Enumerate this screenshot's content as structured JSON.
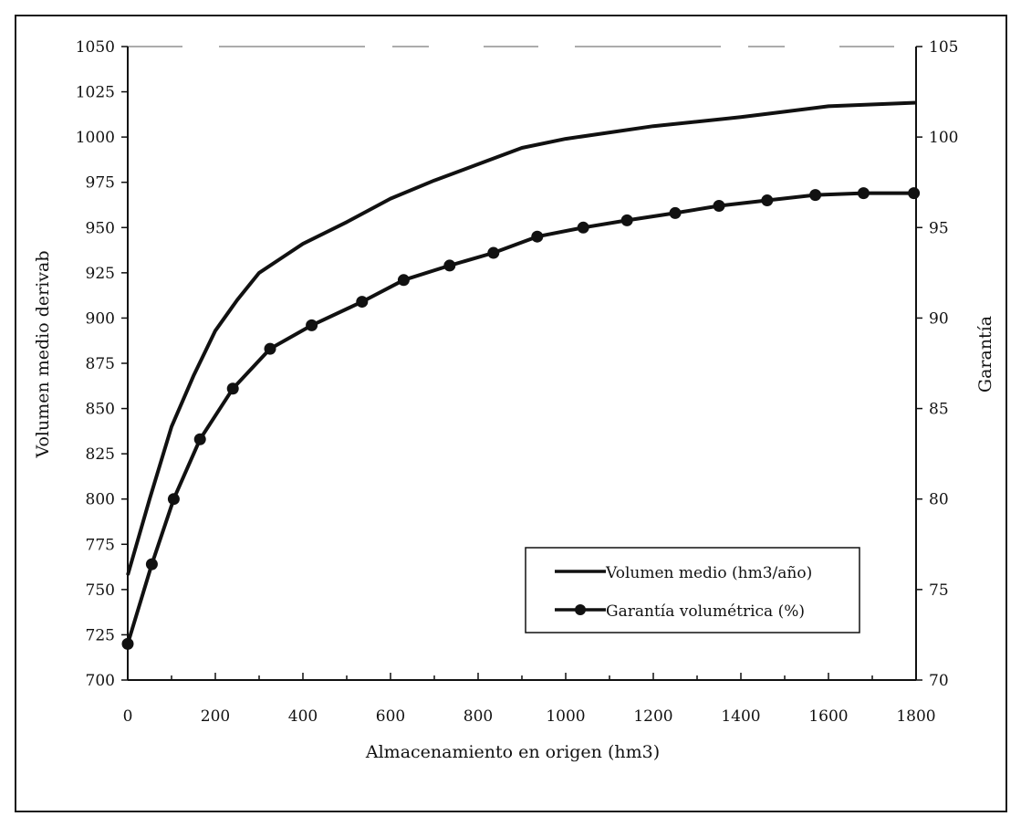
{
  "chart_data": {
    "type": "line",
    "xlabel": "Almacenamiento en origen (hm3)",
    "ylabel": "Volumen medio derivab",
    "y2label": "Garantía",
    "xlim": [
      0,
      1800
    ],
    "ylim": [
      700,
      1050
    ],
    "y2lim": [
      70,
      105
    ],
    "x_ticks": [
      0,
      200,
      400,
      600,
      800,
      1000,
      1200,
      1400,
      1600,
      1800
    ],
    "y_ticks": [
      700,
      725,
      750,
      775,
      800,
      825,
      850,
      875,
      900,
      925,
      950,
      975,
      1000,
      1025,
      1050
    ],
    "y2_ticks": [
      70,
      75,
      80,
      85,
      90,
      95,
      100,
      105
    ],
    "x_tick_labels": [
      "0",
      "200",
      "400",
      "600",
      "800",
      "1000",
      "1200",
      "1400",
      "1600",
      "1800"
    ],
    "y_tick_labels": [
      "700",
      "725",
      "750",
      "775",
      "800",
      "825",
      "850",
      "875",
      "900",
      "925",
      "950",
      "975",
      "1000",
      "1025",
      "1050"
    ],
    "y2_tick_labels": [
      "70",
      "75",
      "80",
      "85",
      "90",
      "95",
      "100",
      "105"
    ],
    "grid": false,
    "legend_position": "bottom-right",
    "series": [
      {
        "name": "Volumen medio (hm3/año)",
        "axis": "left",
        "marker": "none",
        "x": [
          0,
          50,
          100,
          150,
          200,
          250,
          300,
          350,
          400,
          500,
          600,
          700,
          800,
          900,
          1000,
          1200,
          1400,
          1600,
          1800
        ],
        "y": [
          758,
          800,
          840,
          868,
          893,
          910,
          925,
          933,
          941,
          953,
          966,
          976,
          985,
          994,
          999,
          1006,
          1011,
          1017,
          1019
        ]
      },
      {
        "name": "Garantía volumétrica (%)",
        "axis": "right",
        "marker": "circle",
        "x": [
          0,
          55,
          105,
          165,
          240,
          325,
          420,
          535,
          630,
          735,
          835,
          935,
          1040,
          1140,
          1250,
          1350,
          1460,
          1570,
          1680,
          1795
        ],
        "y": [
          72.0,
          76.4,
          80.0,
          83.3,
          86.1,
          88.3,
          89.6,
          90.9,
          92.1,
          92.9,
          93.6,
          94.5,
          95.0,
          95.4,
          95.8,
          96.2,
          96.5,
          96.8,
          96.9,
          96.9
        ]
      }
    ]
  }
}
